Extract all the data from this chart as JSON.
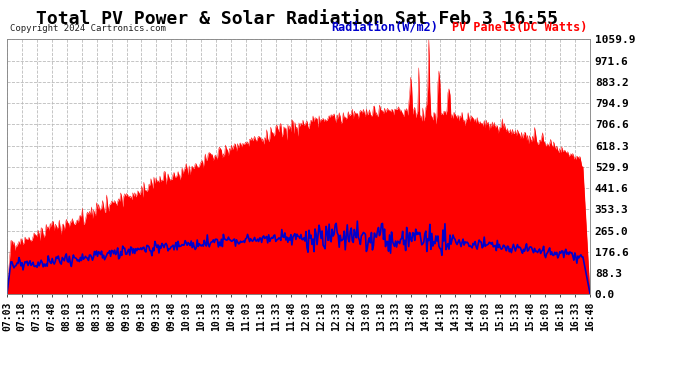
{
  "title": "Total PV Power & Solar Radiation Sat Feb 3 16:55",
  "copyright": "Copyright 2024 Cartronics.com",
  "legend_radiation": "Radiation(W/m2)",
  "legend_pv": "PV Panels(DC Watts)",
  "ylabel_right_values": [
    0.0,
    88.3,
    176.6,
    265.0,
    353.3,
    441.6,
    529.9,
    618.3,
    706.6,
    794.9,
    883.2,
    971.6,
    1059.9
  ],
  "ymax": 1059.9,
  "ymin": 0.0,
  "background_color": "#ffffff",
  "plot_bg_color": "#ffffff",
  "grid_color": "#bbbbbb",
  "pv_color": "#ff0000",
  "radiation_color": "#0000cc",
  "title_fontsize": 13,
  "tick_fontsize": 7,
  "x_tick_labels": [
    "07:03",
    "07:18",
    "07:33",
    "07:48",
    "08:03",
    "08:18",
    "08:33",
    "08:48",
    "09:03",
    "09:18",
    "09:33",
    "09:48",
    "10:03",
    "10:18",
    "10:33",
    "10:48",
    "11:03",
    "11:18",
    "11:33",
    "11:48",
    "12:03",
    "12:18",
    "12:33",
    "12:48",
    "13:03",
    "13:18",
    "13:33",
    "13:48",
    "14:03",
    "14:18",
    "14:33",
    "14:48",
    "15:03",
    "15:18",
    "15:33",
    "15:48",
    "16:03",
    "16:18",
    "16:33",
    "16:48"
  ]
}
